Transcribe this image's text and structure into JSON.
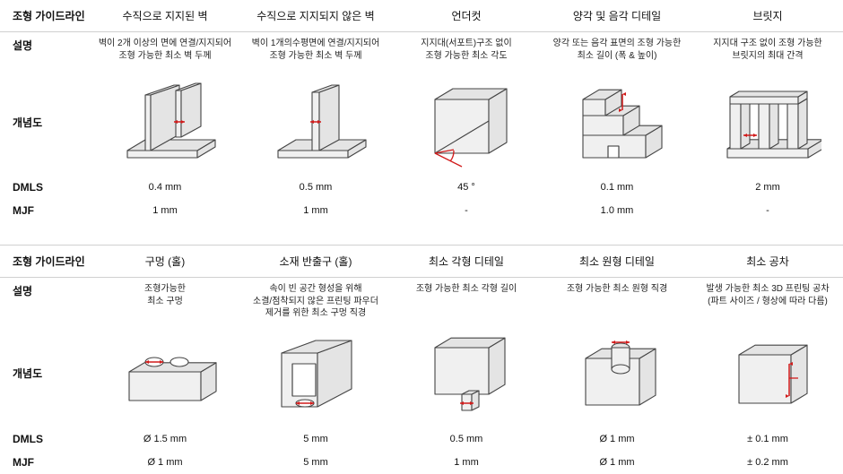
{
  "rowLabels": {
    "guideline": "조형 가이드라인",
    "description": "설명",
    "concept": "개념도",
    "dmls": "DMLS",
    "mjf": "MJF"
  },
  "diagram": {
    "stroke": "#444444",
    "fill": "#f0f0f0",
    "fill2": "#e4e4e4",
    "marker": "#d11b1b",
    "strokeWidth": 1.1
  },
  "sections": [
    {
      "columns": [
        {
          "title": "수직으로 지지된 벽",
          "description": "벽이 2개 이상의 면에 연결/지지되어\n조형 가능한 최소 벽 두께",
          "dmls": "0.4 mm",
          "mjf": "1 mm",
          "shape": "supported_wall"
        },
        {
          "title": "수직으로 지지되지 않은 벽",
          "description": "벽이 1개의수평면에 연결/지지되어\n조형 가능한 최소 벽 두께",
          "dmls": "0.5 mm",
          "mjf": "1 mm",
          "shape": "unsupported_wall"
        },
        {
          "title": "언더컷",
          "description": "지지대(서포트)구조 없이\n조형 가능한 최소 각도",
          "dmls": "45 °",
          "mjf": "-",
          "shape": "undercut"
        },
        {
          "title": "양각 및 음각 디테일",
          "description": "양각 또는 음각 표면의 조형 가능한\n최소 길이 (폭 & 높이)",
          "dmls": "0.1 mm",
          "mjf": "1.0 mm",
          "shape": "emboss"
        },
        {
          "title": "브릿지",
          "description": "지지대 구조 없이 조형 가능한\n브릿지의 최대 간격",
          "dmls": "2 mm",
          "mjf": "-",
          "shape": "bridge"
        }
      ]
    },
    {
      "columns": [
        {
          "title": "구멍 (홀)",
          "description": "조형가능한\n최소 구멍",
          "dmls": "Ø 1.5 mm",
          "mjf": "Ø 1 mm",
          "shape": "hole"
        },
        {
          "title": "소재 반출구 (홀)",
          "description": "속이 빈 공간 형성을 위해\n소결/점착되지 않은 프린팅 파우더\n제거를 위한 최소 구멍 직경",
          "dmls": "5 mm",
          "mjf": "5 mm",
          "shape": "escape_hole"
        },
        {
          "title": "최소 각형 디테일",
          "description": "조형 가능한 최소 각형 길이",
          "dmls": "0.5 mm",
          "mjf": "1 mm",
          "shape": "min_square"
        },
        {
          "title": "최소 원형 디테일",
          "description": "조형 가능한 최소 원형 직경",
          "dmls": "Ø 1 mm",
          "mjf": "Ø 1 mm",
          "shape": "min_circle"
        },
        {
          "title": "최소 공차",
          "description": "발생 가능한 최소 3D 프린팅 공차\n(파트 사이즈 / 형상에 따라 다름)",
          "dmls": "± 0.1 mm",
          "mjf": "± 0.2 mm",
          "shape": "tolerance"
        }
      ]
    }
  ]
}
